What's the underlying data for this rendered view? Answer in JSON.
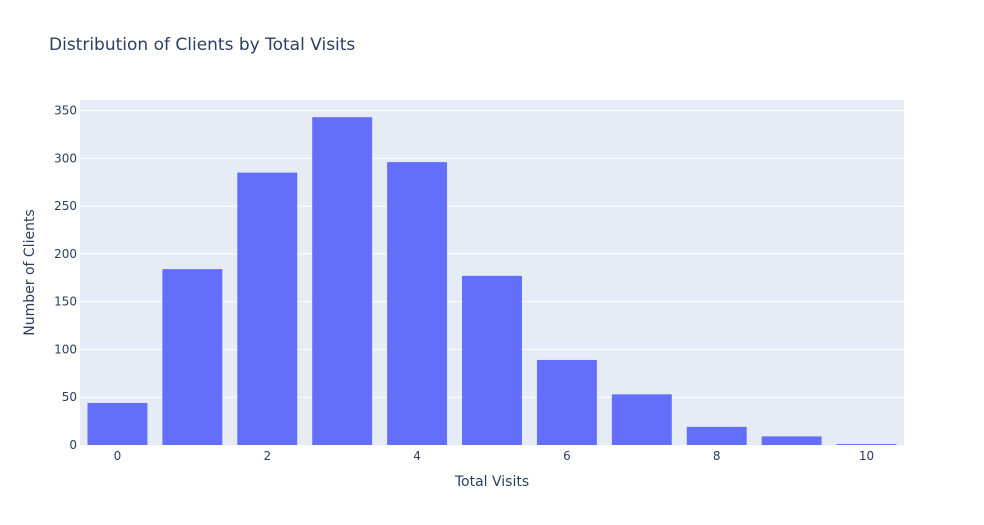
{
  "chart_data": {
    "type": "bar",
    "title": "Distribution of Clients by Total Visits",
    "xlabel": "Total Visits",
    "ylabel": "Number of Clients",
    "x": [
      0,
      1,
      2,
      3,
      4,
      5,
      6,
      7,
      8,
      9,
      10
    ],
    "values": [
      44,
      184,
      285,
      343,
      296,
      177,
      89,
      53,
      19,
      9,
      1
    ],
    "xlim": [
      -0.5,
      10.5
    ],
    "ylim": [
      0,
      361
    ],
    "x_ticks": [
      0,
      2,
      4,
      6,
      8,
      10
    ],
    "y_ticks": [
      0,
      50,
      100,
      150,
      200,
      250,
      300,
      350
    ],
    "grid": true,
    "colors": {
      "bar": "#636efa",
      "plot_background": "#e5ecf6",
      "grid": "#ffffff",
      "text": "#2a3f5f"
    }
  }
}
